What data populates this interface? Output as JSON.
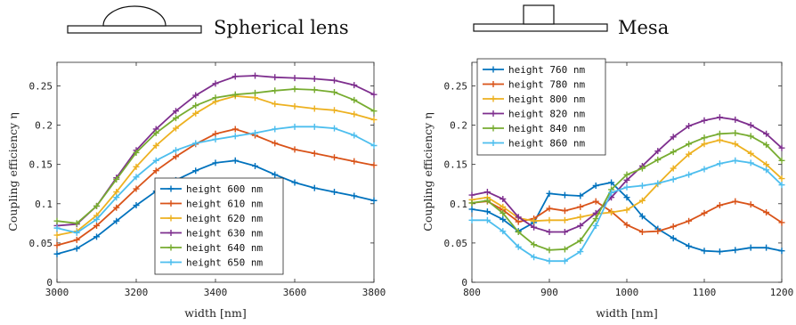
{
  "chart_data": [
    {
      "type": "line",
      "title": "Spherical lens",
      "xlabel": "width [nm]",
      "ylabel": "Coupling efficiency η",
      "xlim": [
        3000,
        3800
      ],
      "ylim": [
        0,
        0.28
      ],
      "xticks": [
        "3000",
        "3200",
        "3400",
        "3600",
        "3800"
      ],
      "yticks": [
        "0",
        "0.05",
        "0.1",
        "0.15",
        "0.2",
        "0.25"
      ],
      "legend_position": "bottom-center",
      "x": [
        3000,
        3050,
        3100,
        3150,
        3200,
        3250,
        3300,
        3350,
        3400,
        3450,
        3500,
        3550,
        3600,
        3650,
        3700,
        3750,
        3800
      ],
      "series": [
        {
          "name": "height 600 nm",
          "color": "#0072BD",
          "values": [
            0.036,
            0.043,
            0.058,
            0.078,
            0.098,
            0.116,
            0.13,
            0.142,
            0.152,
            0.155,
            0.148,
            0.137,
            0.127,
            0.12,
            0.115,
            0.11,
            0.104
          ]
        },
        {
          "name": "height 610 nm",
          "color": "#D95319",
          "values": [
            0.047,
            0.054,
            0.072,
            0.095,
            0.119,
            0.142,
            0.16,
            0.176,
            0.189,
            0.195,
            0.187,
            0.177,
            0.169,
            0.164,
            0.159,
            0.154,
            0.149
          ]
        },
        {
          "name": "height 620 nm",
          "color": "#EDB120",
          "values": [
            0.06,
            0.065,
            0.085,
            0.115,
            0.147,
            0.174,
            0.196,
            0.215,
            0.23,
            0.237,
            0.235,
            0.227,
            0.224,
            0.221,
            0.219,
            0.214,
            0.207
          ]
        },
        {
          "name": "height 630 nm",
          "color": "#7E2F8E",
          "values": [
            0.072,
            0.074,
            0.097,
            0.133,
            0.168,
            0.195,
            0.218,
            0.238,
            0.253,
            0.262,
            0.263,
            0.261,
            0.26,
            0.259,
            0.257,
            0.251,
            0.239
          ]
        },
        {
          "name": "height 640 nm",
          "color": "#77AC30",
          "values": [
            0.078,
            0.075,
            0.097,
            0.131,
            0.165,
            0.19,
            0.209,
            0.225,
            0.235,
            0.239,
            0.241,
            0.244,
            0.246,
            0.245,
            0.242,
            0.232,
            0.218
          ]
        },
        {
          "name": "height 650 nm",
          "color": "#4DBEEE",
          "values": [
            0.069,
            0.063,
            0.08,
            0.108,
            0.134,
            0.155,
            0.168,
            0.177,
            0.182,
            0.186,
            0.19,
            0.195,
            0.198,
            0.198,
            0.196,
            0.187,
            0.174
          ]
        }
      ]
    },
    {
      "type": "line",
      "title": "Mesa",
      "xlabel": "width [nm]",
      "ylabel": "Coupling efficiency η",
      "xlim": [
        800,
        1200
      ],
      "ylim": [
        0,
        0.28
      ],
      "xticks": [
        "800",
        "900",
        "1000",
        "1100",
        "1200"
      ],
      "yticks": [
        "0",
        "0.05",
        "0.1",
        "0.15",
        "0.2",
        "0.25"
      ],
      "legend_position": "top-left",
      "x": [
        800,
        820,
        840,
        860,
        880,
        900,
        920,
        940,
        960,
        980,
        1000,
        1020,
        1040,
        1060,
        1080,
        1100,
        1120,
        1140,
        1160,
        1180,
        1200
      ],
      "series": [
        {
          "name": "height 760 nm",
          "color": "#0072BD",
          "values": [
            0.093,
            0.09,
            0.08,
            0.065,
            0.076,
            0.113,
            0.111,
            0.11,
            0.123,
            0.127,
            0.108,
            0.084,
            0.068,
            0.056,
            0.046,
            0.04,
            0.039,
            0.041,
            0.044,
            0.044,
            0.04
          ]
        },
        {
          "name": "height 780 nm",
          "color": "#D95319",
          "values": [
            0.101,
            0.103,
            0.092,
            0.077,
            0.081,
            0.094,
            0.091,
            0.096,
            0.103,
            0.09,
            0.073,
            0.064,
            0.065,
            0.071,
            0.078,
            0.088,
            0.098,
            0.103,
            0.099,
            0.089,
            0.076
          ]
        },
        {
          "name": "height 800 nm",
          "color": "#EDB120",
          "values": [
            0.105,
            0.108,
            0.096,
            0.082,
            0.078,
            0.079,
            0.079,
            0.083,
            0.087,
            0.089,
            0.092,
            0.104,
            0.125,
            0.145,
            0.163,
            0.176,
            0.181,
            0.176,
            0.164,
            0.15,
            0.132
          ]
        },
        {
          "name": "height 820 nm",
          "color": "#7E2F8E",
          "values": [
            0.111,
            0.115,
            0.106,
            0.083,
            0.07,
            0.064,
            0.064,
            0.072,
            0.088,
            0.108,
            0.13,
            0.148,
            0.167,
            0.185,
            0.199,
            0.206,
            0.21,
            0.207,
            0.2,
            0.189,
            0.171
          ]
        },
        {
          "name": "height 840 nm",
          "color": "#77AC30",
          "values": [
            0.101,
            0.104,
            0.088,
            0.064,
            0.048,
            0.041,
            0.042,
            0.053,
            0.081,
            0.118,
            0.137,
            0.145,
            0.156,
            0.166,
            0.176,
            0.184,
            0.189,
            0.19,
            0.186,
            0.175,
            0.155
          ]
        },
        {
          "name": "height 860 nm",
          "color": "#4DBEEE",
          "values": [
            0.079,
            0.079,
            0.065,
            0.045,
            0.032,
            0.027,
            0.027,
            0.039,
            0.072,
            0.114,
            0.121,
            0.123,
            0.126,
            0.131,
            0.137,
            0.144,
            0.151,
            0.155,
            0.152,
            0.143,
            0.124
          ]
        }
      ]
    }
  ]
}
